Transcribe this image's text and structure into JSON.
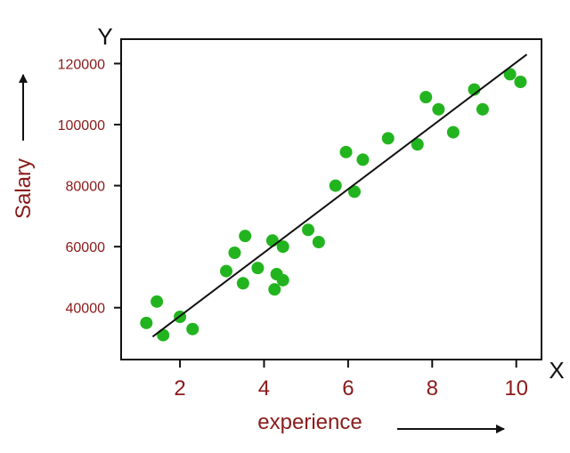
{
  "chart_data": {
    "type": "scatter",
    "xlabel": "experience",
    "ylabel": "Salary",
    "x_axis_letter": "X",
    "y_axis_letter": "Y",
    "xlim": [
      0.6,
      10.6
    ],
    "ylim": [
      23000,
      128000
    ],
    "xticks": [
      2,
      4,
      6,
      8,
      10
    ],
    "yticks": [
      40000,
      60000,
      80000,
      100000,
      120000
    ],
    "grid": false,
    "point_color": "#22b41f",
    "line_color": "#111111",
    "text_color": "#8b1a1a",
    "series": [
      {
        "x": [
          1.2,
          1.45,
          1.6,
          2.0,
          2.3,
          3.1,
          3.3,
          3.5,
          3.55,
          3.85,
          4.2,
          4.25,
          4.3,
          4.45,
          4.45,
          5.05,
          5.3,
          5.7,
          5.95,
          6.15,
          6.35,
          6.95,
          7.65,
          7.85,
          8.15,
          8.5,
          9.0,
          9.2,
          9.85,
          10.1
        ],
        "y": [
          35000,
          42000,
          31000,
          37000,
          33000,
          52000,
          58000,
          48000,
          63500,
          53000,
          62000,
          46000,
          51000,
          60000,
          49000,
          65500,
          61500,
          80000,
          91000,
          78000,
          88500,
          95500,
          93500,
          109000,
          105000,
          97500,
          111500,
          105000,
          116500,
          114000
        ]
      }
    ],
    "regression_line": {
      "x": [
        1.35,
        10.25
      ],
      "y": [
        30500,
        123000
      ]
    }
  }
}
